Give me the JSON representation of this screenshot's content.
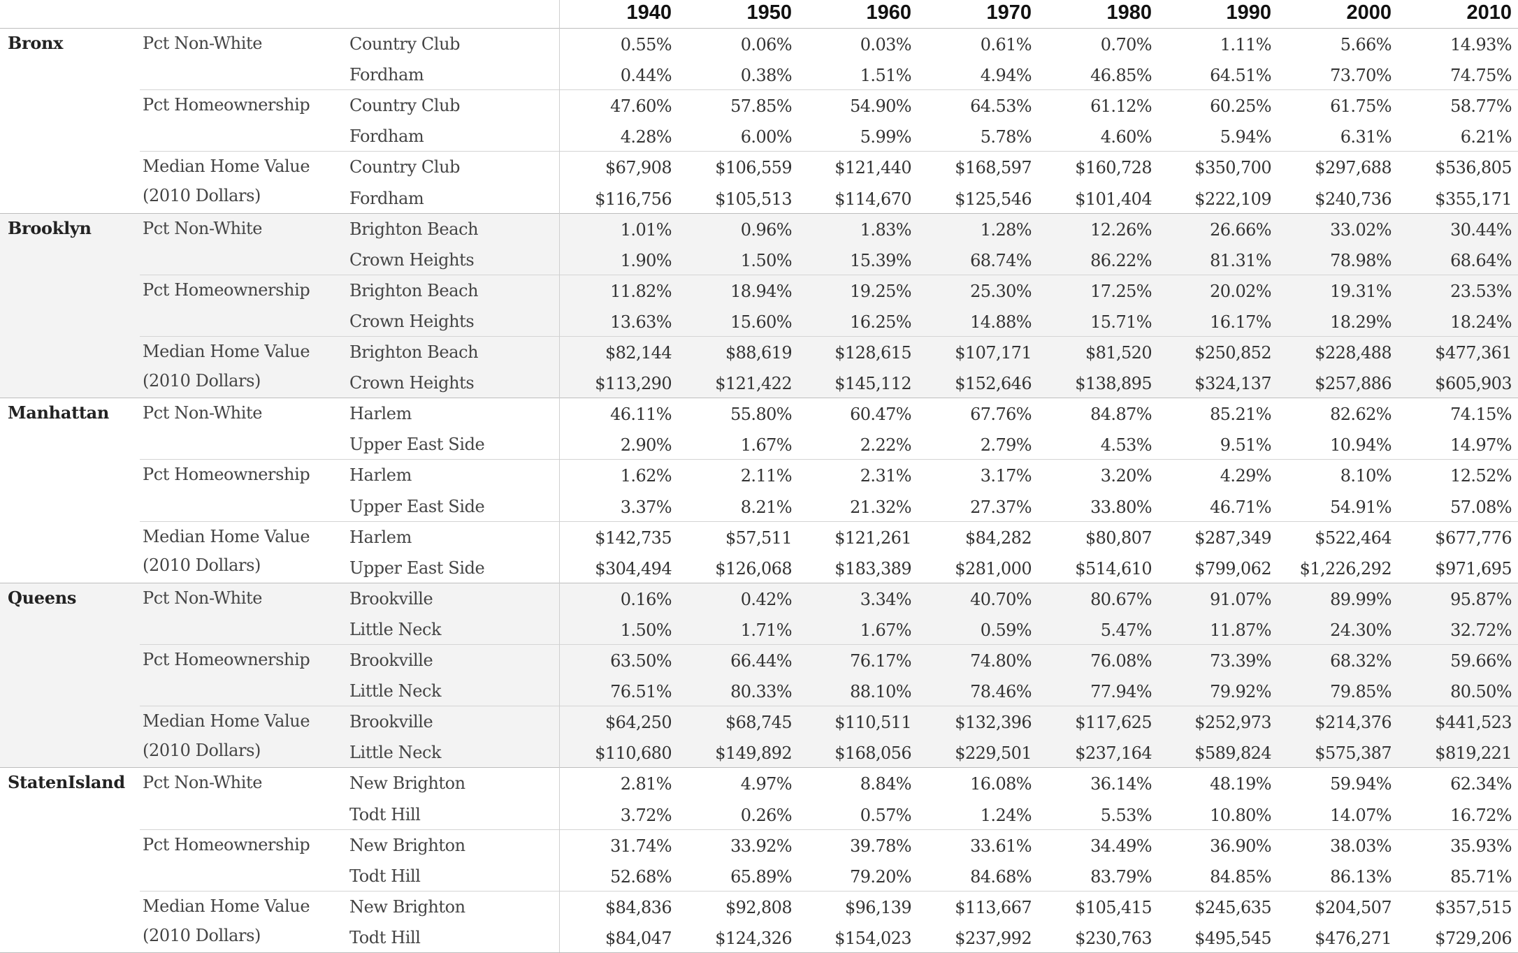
{
  "chart_data": {
    "type": "table",
    "years": [
      "1940",
      "1950",
      "1960",
      "1970",
      "1980",
      "1990",
      "2000",
      "2010"
    ],
    "boroughs": [
      {
        "name": "Bronx",
        "metrics": [
          {
            "label": [
              "Pct Non-White"
            ],
            "rows": [
              {
                "neighborhood": "Country Club",
                "values": [
                  "0.55%",
                  "0.06%",
                  "0.03%",
                  "0.61%",
                  "0.70%",
                  "1.11%",
                  "5.66%",
                  "14.93%"
                ]
              },
              {
                "neighborhood": "Fordham",
                "values": [
                  "0.44%",
                  "0.38%",
                  "1.51%",
                  "4.94%",
                  "46.85%",
                  "64.51%",
                  "73.70%",
                  "74.75%"
                ]
              }
            ]
          },
          {
            "label": [
              "Pct Homeownership"
            ],
            "rows": [
              {
                "neighborhood": "Country Club",
                "values": [
                  "47.60%",
                  "57.85%",
                  "54.90%",
                  "64.53%",
                  "61.12%",
                  "60.25%",
                  "61.75%",
                  "58.77%"
                ]
              },
              {
                "neighborhood": "Fordham",
                "values": [
                  "4.28%",
                  "6.00%",
                  "5.99%",
                  "5.78%",
                  "4.60%",
                  "5.94%",
                  "6.31%",
                  "6.21%"
                ]
              }
            ]
          },
          {
            "label": [
              "Median Home Value",
              "(2010 Dollars)"
            ],
            "rows": [
              {
                "neighborhood": "Country Club",
                "values": [
                  "$67,908",
                  "$106,559",
                  "$121,440",
                  "$168,597",
                  "$160,728",
                  "$350,700",
                  "$297,688",
                  "$536,805"
                ]
              },
              {
                "neighborhood": "Fordham",
                "values": [
                  "$116,756",
                  "$105,513",
                  "$114,670",
                  "$125,546",
                  "$101,404",
                  "$222,109",
                  "$240,736",
                  "$355,171"
                ]
              }
            ]
          }
        ]
      },
      {
        "name": "Brooklyn",
        "metrics": [
          {
            "label": [
              "Pct Non-White"
            ],
            "rows": [
              {
                "neighborhood": "Brighton Beach",
                "values": [
                  "1.01%",
                  "0.96%",
                  "1.83%",
                  "1.28%",
                  "12.26%",
                  "26.66%",
                  "33.02%",
                  "30.44%"
                ]
              },
              {
                "neighborhood": "Crown Heights",
                "values": [
                  "1.90%",
                  "1.50%",
                  "15.39%",
                  "68.74%",
                  "86.22%",
                  "81.31%",
                  "78.98%",
                  "68.64%"
                ]
              }
            ]
          },
          {
            "label": [
              "Pct Homeownership"
            ],
            "rows": [
              {
                "neighborhood": "Brighton Beach",
                "values": [
                  "11.82%",
                  "18.94%",
                  "19.25%",
                  "25.30%",
                  "17.25%",
                  "20.02%",
                  "19.31%",
                  "23.53%"
                ]
              },
              {
                "neighborhood": "Crown Heights",
                "values": [
                  "13.63%",
                  "15.60%",
                  "16.25%",
                  "14.88%",
                  "15.71%",
                  "16.17%",
                  "18.29%",
                  "18.24%"
                ]
              }
            ]
          },
          {
            "label": [
              "Median Home Value",
              "(2010 Dollars)"
            ],
            "rows": [
              {
                "neighborhood": "Brighton Beach",
                "values": [
                  "$82,144",
                  "$88,619",
                  "$128,615",
                  "$107,171",
                  "$81,520",
                  "$250,852",
                  "$228,488",
                  "$477,361"
                ]
              },
              {
                "neighborhood": "Crown Heights",
                "values": [
                  "$113,290",
                  "$121,422",
                  "$145,112",
                  "$152,646",
                  "$138,895",
                  "$324,137",
                  "$257,886",
                  "$605,903"
                ]
              }
            ]
          }
        ]
      },
      {
        "name": "Manhattan",
        "metrics": [
          {
            "label": [
              "Pct Non-White"
            ],
            "rows": [
              {
                "neighborhood": "Harlem",
                "values": [
                  "46.11%",
                  "55.80%",
                  "60.47%",
                  "67.76%",
                  "84.87%",
                  "85.21%",
                  "82.62%",
                  "74.15%"
                ]
              },
              {
                "neighborhood": "Upper East Side",
                "values": [
                  "2.90%",
                  "1.67%",
                  "2.22%",
                  "2.79%",
                  "4.53%",
                  "9.51%",
                  "10.94%",
                  "14.97%"
                ]
              }
            ]
          },
          {
            "label": [
              "Pct Homeownership"
            ],
            "rows": [
              {
                "neighborhood": "Harlem",
                "values": [
                  "1.62%",
                  "2.11%",
                  "2.31%",
                  "3.17%",
                  "3.20%",
                  "4.29%",
                  "8.10%",
                  "12.52%"
                ]
              },
              {
                "neighborhood": "Upper East Side",
                "values": [
                  "3.37%",
                  "8.21%",
                  "21.32%",
                  "27.37%",
                  "33.80%",
                  "46.71%",
                  "54.91%",
                  "57.08%"
                ]
              }
            ]
          },
          {
            "label": [
              "Median Home Value",
              "(2010 Dollars)"
            ],
            "rows": [
              {
                "neighborhood": "Harlem",
                "values": [
                  "$142,735",
                  "$57,511",
                  "$121,261",
                  "$84,282",
                  "$80,807",
                  "$287,349",
                  "$522,464",
                  "$677,776"
                ]
              },
              {
                "neighborhood": "Upper East Side",
                "values": [
                  "$304,494",
                  "$126,068",
                  "$183,389",
                  "$281,000",
                  "$514,610",
                  "$799,062",
                  "$1,226,292",
                  "$971,695"
                ]
              }
            ]
          }
        ]
      },
      {
        "name": "Queens",
        "metrics": [
          {
            "label": [
              "Pct Non-White"
            ],
            "rows": [
              {
                "neighborhood": "Brookville",
                "values": [
                  "0.16%",
                  "0.42%",
                  "3.34%",
                  "40.70%",
                  "80.67%",
                  "91.07%",
                  "89.99%",
                  "95.87%"
                ]
              },
              {
                "neighborhood": "Little Neck",
                "values": [
                  "1.50%",
                  "1.71%",
                  "1.67%",
                  "0.59%",
                  "5.47%",
                  "11.87%",
                  "24.30%",
                  "32.72%"
                ]
              }
            ]
          },
          {
            "label": [
              "Pct Homeownership"
            ],
            "rows": [
              {
                "neighborhood": "Brookville",
                "values": [
                  "63.50%",
                  "66.44%",
                  "76.17%",
                  "74.80%",
                  "76.08%",
                  "73.39%",
                  "68.32%",
                  "59.66%"
                ]
              },
              {
                "neighborhood": "Little Neck",
                "values": [
                  "76.51%",
                  "80.33%",
                  "88.10%",
                  "78.46%",
                  "77.94%",
                  "79.92%",
                  "79.85%",
                  "80.50%"
                ]
              }
            ]
          },
          {
            "label": [
              "Median Home Value",
              "(2010 Dollars)"
            ],
            "rows": [
              {
                "neighborhood": "Brookville",
                "values": [
                  "$64,250",
                  "$68,745",
                  "$110,511",
                  "$132,396",
                  "$117,625",
                  "$252,973",
                  "$214,376",
                  "$441,523"
                ]
              },
              {
                "neighborhood": "Little Neck",
                "values": [
                  "$110,680",
                  "$149,892",
                  "$168,056",
                  "$229,501",
                  "$237,164",
                  "$589,824",
                  "$575,387",
                  "$819,221"
                ]
              }
            ]
          }
        ]
      },
      {
        "name": "StatenIsland",
        "metrics": [
          {
            "label": [
              "Pct Non-White"
            ],
            "rows": [
              {
                "neighborhood": "New Brighton",
                "values": [
                  "2.81%",
                  "4.97%",
                  "8.84%",
                  "16.08%",
                  "36.14%",
                  "48.19%",
                  "59.94%",
                  "62.34%"
                ]
              },
              {
                "neighborhood": "Todt Hill",
                "values": [
                  "3.72%",
                  "0.26%",
                  "0.57%",
                  "1.24%",
                  "5.53%",
                  "10.80%",
                  "14.07%",
                  "16.72%"
                ]
              }
            ]
          },
          {
            "label": [
              "Pct Homeownership"
            ],
            "rows": [
              {
                "neighborhood": "New Brighton",
                "values": [
                  "31.74%",
                  "33.92%",
                  "39.78%",
                  "33.61%",
                  "34.49%",
                  "36.90%",
                  "38.03%",
                  "35.93%"
                ]
              },
              {
                "neighborhood": "Todt Hill",
                "values": [
                  "52.68%",
                  "65.89%",
                  "79.20%",
                  "84.68%",
                  "83.79%",
                  "84.85%",
                  "86.13%",
                  "85.71%"
                ]
              }
            ]
          },
          {
            "label": [
              "Median Home Value",
              "(2010 Dollars)"
            ],
            "rows": [
              {
                "neighborhood": "New Brighton",
                "values": [
                  "$84,836",
                  "$92,808",
                  "$96,139",
                  "$113,667",
                  "$105,415",
                  "$245,635",
                  "$204,507",
                  "$357,515"
                ]
              },
              {
                "neighborhood": "Todt Hill",
                "values": [
                  "$84,047",
                  "$124,326",
                  "$154,023",
                  "$237,992",
                  "$230,763",
                  "$495,545",
                  "$476,271",
                  "$729,206"
                ]
              }
            ]
          }
        ]
      }
    ]
  },
  "colors": {
    "shaded_band": "#f3f3f3",
    "borough_rule": "#bdbdbd",
    "metric_rule": "#d4d4d4",
    "text": "#333333"
  }
}
